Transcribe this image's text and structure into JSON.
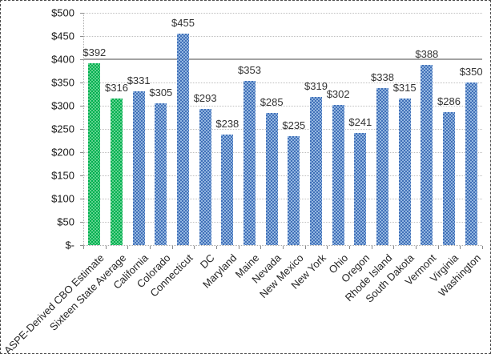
{
  "chart_data": {
    "type": "bar",
    "title": "",
    "xlabel": "",
    "ylabel": "",
    "legend": "none",
    "ylim": [
      0,
      500
    ],
    "ytick_step": 50,
    "grid": {
      "style": "dotted-horizontal",
      "emphasized_line_value": 400
    },
    "categories": [
      "ASPE-Derived CBO Estimate",
      "Sixteen State Average",
      "California",
      "Colorado",
      "Connecticut",
      "DC",
      "Maryland",
      "Maine",
      "Nevada",
      "New Mexico",
      "New York",
      "Ohio",
      "Oregon",
      "Rhode Island",
      "South Dakota",
      "Vermont",
      "Virginia",
      "Washington"
    ],
    "values": [
      392,
      316,
      331,
      305,
      455,
      293,
      238,
      353,
      285,
      235,
      319,
      302,
      241,
      338,
      315,
      388,
      286,
      350
    ],
    "data_labels": [
      "$392",
      "$316",
      "$331",
      "$305",
      "$455",
      "$293",
      "$238",
      "$353",
      "$285",
      "$235",
      "$319",
      "$302",
      "$241",
      "$338",
      "$315",
      "$388",
      "$286",
      "$350"
    ],
    "bar_groups": [
      "highlight",
      "highlight",
      "default",
      "default",
      "default",
      "default",
      "default",
      "default",
      "default",
      "default",
      "default",
      "default",
      "default",
      "default",
      "default",
      "default",
      "default",
      "default"
    ],
    "y_ticks": [
      {
        "value": 0,
        "label": "$-"
      },
      {
        "value": 50,
        "label": "$50"
      },
      {
        "value": 100,
        "label": "$100"
      },
      {
        "value": 150,
        "label": "$150"
      },
      {
        "value": 200,
        "label": "$200"
      },
      {
        "value": 250,
        "label": "$250"
      },
      {
        "value": 300,
        "label": "$300"
      },
      {
        "value": 350,
        "label": "$350"
      },
      {
        "value": 400,
        "label": "$400"
      },
      {
        "value": 450,
        "label": "$450"
      },
      {
        "value": 500,
        "label": "$500"
      }
    ]
  },
  "colors": {
    "highlight_dark": "#00AF50",
    "highlight_light": "#5FD38F",
    "default_dark": "#4170B8",
    "default_light": "#93B6E0",
    "gridline": "#BFBFBF",
    "emphasized_gridline": "#A3A3A3",
    "axis": "#ABABAB",
    "tick": "#8C8C8C",
    "value_label_text": "#333333",
    "tick_label_text": "#1a1a1a",
    "category_label_text": "#262626"
  }
}
